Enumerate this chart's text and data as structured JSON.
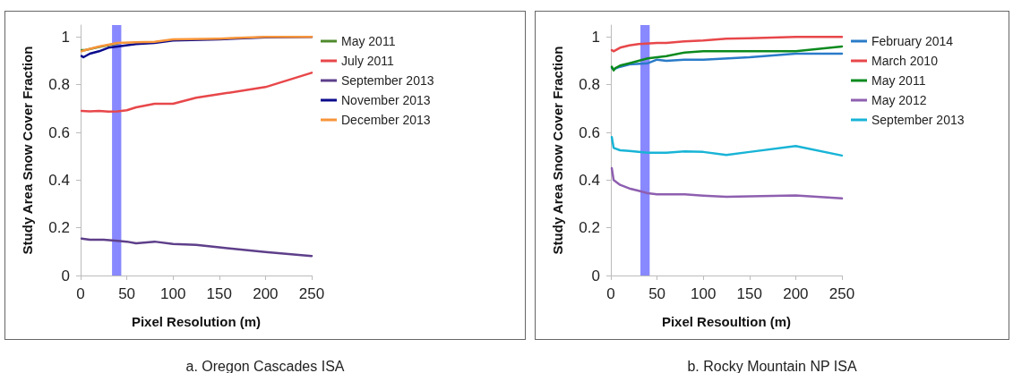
{
  "chart_data": [
    {
      "type": "line",
      "title": "a. Oregon Cascades ISA",
      "xlabel": "Pixel Resolution (m)",
      "ylabel": "Study Area Snow Cover Fraction",
      "xlim": [
        0,
        250
      ],
      "xticks": [
        0,
        50,
        100,
        150,
        200,
        250
      ],
      "ylim": [
        0,
        1.05
      ],
      "yticks": [
        0,
        0.2,
        0.4,
        0.6,
        0.8,
        1
      ],
      "grid": false,
      "legend": "right",
      "marker": "none",
      "line_style": "solid",
      "bands": [
        {
          "axis": "x",
          "from": 34,
          "to": 44,
          "color": "#7b7bff"
        }
      ],
      "series": [
        {
          "name": "May 2011",
          "color": "#4f8a2c",
          "x": [
            1,
            5,
            20,
            40
          ],
          "values": [
            0.945,
            0.945,
            0.958,
            0.973
          ]
        },
        {
          "name": "July 2011",
          "color": "#e8474a",
          "x": [
            1,
            10,
            20,
            30,
            40,
            50,
            60,
            80,
            100,
            125,
            150,
            200,
            250
          ],
          "values": [
            0.69,
            0.688,
            0.69,
            0.687,
            0.688,
            0.693,
            0.705,
            0.72,
            0.72,
            0.745,
            0.76,
            0.79,
            0.85
          ]
        },
        {
          "name": "September 2013",
          "color": "#5e3f8a",
          "x": [
            1,
            10,
            25,
            40,
            50,
            60,
            80,
            100,
            125,
            150,
            200,
            250
          ],
          "values": [
            0.155,
            0.15,
            0.15,
            0.145,
            0.142,
            0.135,
            0.142,
            0.132,
            0.128,
            0.118,
            0.098,
            0.082
          ]
        },
        {
          "name": "November 2013",
          "color": "#0a0a8c",
          "x": [
            1,
            3,
            10,
            20,
            30,
            40,
            60,
            80,
            100,
            150,
            200,
            250
          ],
          "values": [
            0.92,
            0.915,
            0.93,
            0.94,
            0.955,
            0.96,
            0.97,
            0.975,
            0.985,
            0.99,
            0.998,
            1.0
          ]
        },
        {
          "name": "December 2013",
          "color": "#f7953a",
          "x": [
            1,
            5,
            20,
            40,
            60,
            80,
            100,
            150,
            200,
            250
          ],
          "values": [
            0.94,
            0.945,
            0.96,
            0.975,
            0.978,
            0.98,
            0.99,
            0.993,
            1.0,
            1.0
          ]
        }
      ]
    },
    {
      "type": "line",
      "title": "b. Rocky Mountain NP ISA",
      "xlabel": "Pixel Resoultion (m)",
      "ylabel": "Study Area Snow Cover Fraction",
      "xlim": [
        0,
        250
      ],
      "xticks": [
        0,
        50,
        100,
        150,
        200,
        250
      ],
      "ylim": [
        0,
        1.05
      ],
      "yticks": [
        0,
        0.2,
        0.4,
        0.6,
        0.8,
        1
      ],
      "grid": false,
      "legend": "right",
      "marker": "none",
      "line_style": "solid",
      "bands": [
        {
          "axis": "x",
          "from": 32,
          "to": 42,
          "color": "#7b7bff"
        }
      ],
      "series": [
        {
          "name": "February 2014",
          "color": "#2a7bc8",
          "x": [
            1,
            3,
            10,
            20,
            40,
            50,
            60,
            80,
            100,
            150,
            200,
            250
          ],
          "values": [
            0.87,
            0.865,
            0.875,
            0.885,
            0.89,
            0.905,
            0.9,
            0.905,
            0.905,
            0.915,
            0.93,
            0.93
          ]
        },
        {
          "name": "March 2010",
          "color": "#e8474a",
          "x": [
            1,
            3,
            10,
            20,
            30,
            50,
            60,
            80,
            100,
            125,
            150,
            200,
            250
          ],
          "values": [
            0.945,
            0.94,
            0.955,
            0.965,
            0.97,
            0.975,
            0.975,
            0.982,
            0.985,
            0.993,
            0.995,
            1.0,
            1.0
          ]
        },
        {
          "name": "May 2011",
          "color": "#0b8a1e",
          "x": [
            1,
            3,
            5,
            10,
            20,
            30,
            40,
            60,
            80,
            100,
            150,
            200,
            250
          ],
          "values": [
            0.875,
            0.86,
            0.87,
            0.88,
            0.89,
            0.9,
            0.91,
            0.92,
            0.935,
            0.94,
            0.94,
            0.94,
            0.96
          ]
        },
        {
          "name": "May 2012",
          "color": "#8e5fb0",
          "x": [
            1,
            3,
            10,
            20,
            30,
            40,
            50,
            80,
            100,
            125,
            150,
            200,
            250
          ],
          "values": [
            0.45,
            0.4,
            0.38,
            0.365,
            0.355,
            0.345,
            0.34,
            0.34,
            0.335,
            0.33,
            0.332,
            0.336,
            0.323
          ]
        },
        {
          "name": "September 2013",
          "color": "#18b4d6",
          "x": [
            1,
            3,
            10,
            20,
            40,
            60,
            80,
            100,
            125,
            150,
            200,
            250
          ],
          "values": [
            0.58,
            0.535,
            0.525,
            0.522,
            0.515,
            0.515,
            0.52,
            0.518,
            0.505,
            0.518,
            0.543,
            0.503
          ]
        }
      ]
    }
  ]
}
